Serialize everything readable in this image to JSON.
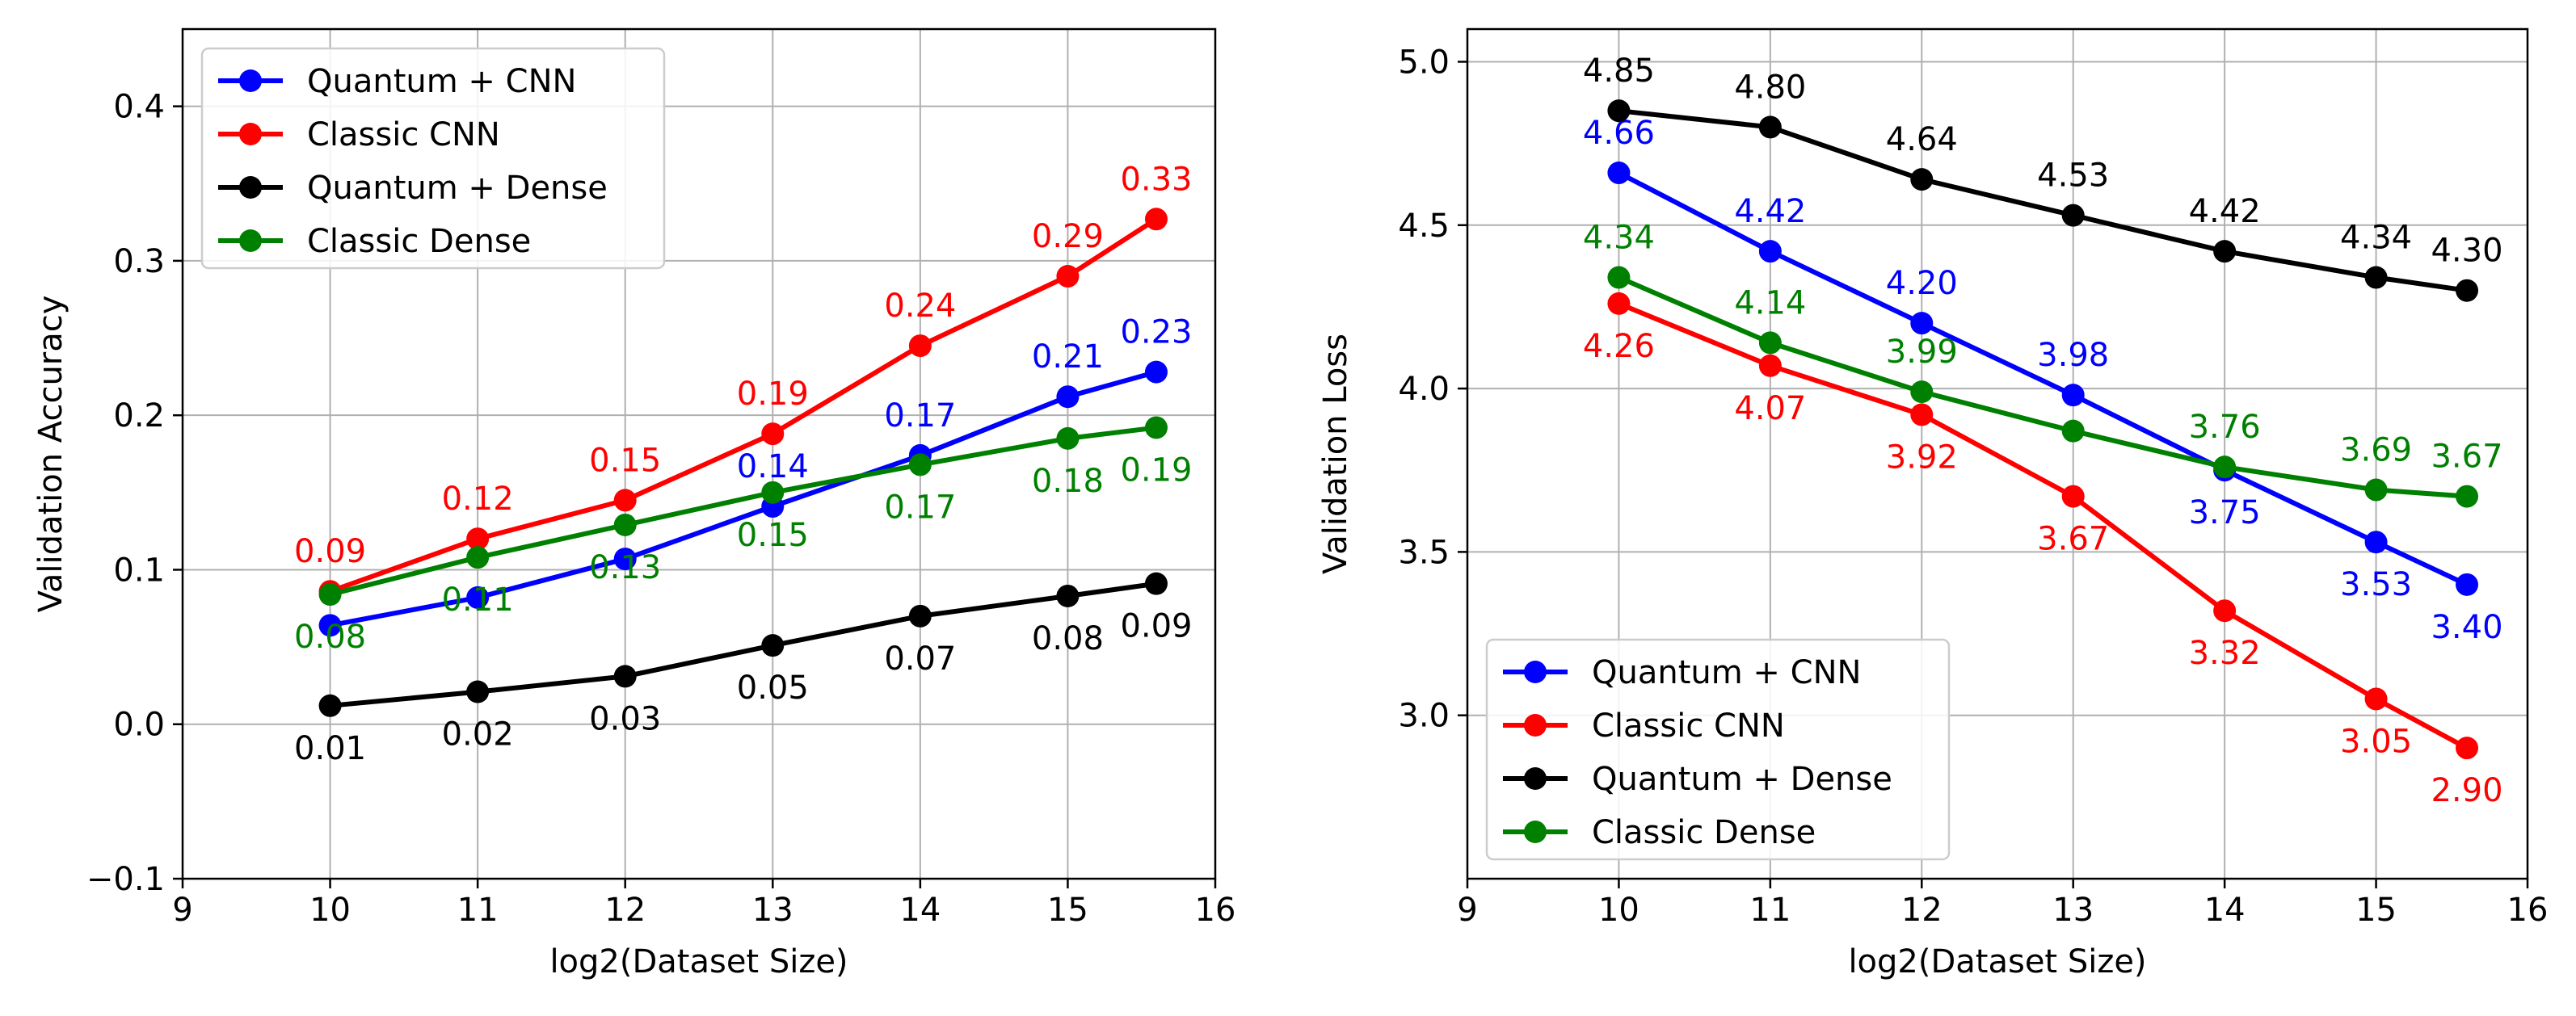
{
  "colors": {
    "quantum_cnn": "#0000ff",
    "classic_cnn": "#ff0000",
    "quantum_dense": "#000000",
    "classic_dense": "#008000",
    "grid": "#b0b0b0",
    "axes": "#000000"
  },
  "chart_data": [
    {
      "type": "line",
      "title": "",
      "xlabel": "log2(Dataset Size)",
      "ylabel": "Validation Accuracy",
      "xlim": [
        9,
        16
      ],
      "ylim": [
        -0.1,
        0.45
      ],
      "xticks": [
        9,
        10,
        11,
        12,
        13,
        14,
        15,
        16
      ],
      "xtick_labels": [
        "9",
        "10",
        "11",
        "12",
        "13",
        "14",
        "15",
        "16"
      ],
      "yticks": [
        -0.1,
        0.0,
        0.1,
        0.2,
        0.3,
        0.4
      ],
      "ytick_labels": [
        "−0.1",
        "0.0",
        "0.1",
        "0.2",
        "0.3",
        "0.4"
      ],
      "grid": true,
      "legend_position": "top-left",
      "x": [
        10,
        11,
        12,
        13,
        14,
        15,
        15.6
      ],
      "series": [
        {
          "name": "Quantum + CNN",
          "color_key": "quantum_cnn",
          "values": [
            0.064,
            0.082,
            0.107,
            0.141,
            0.174,
            0.212,
            0.228
          ],
          "labels": [
            "",
            "",
            "",
            "0.14",
            "0.17",
            "0.21",
            "0.23"
          ],
          "label_pos": [
            "above",
            "above",
            "above",
            "above",
            "above",
            "above",
            "above"
          ]
        },
        {
          "name": "Classic CNN",
          "color_key": "classic_cnn",
          "values": [
            0.086,
            0.12,
            0.145,
            0.188,
            0.245,
            0.29,
            0.327
          ],
          "labels": [
            "0.09",
            "0.12",
            "0.15",
            "0.19",
            "0.24",
            "0.29",
            "0.33"
          ],
          "label_pos": [
            "above",
            "above",
            "above",
            "above",
            "above",
            "above",
            "above"
          ]
        },
        {
          "name": "Quantum + Dense",
          "color_key": "quantum_dense",
          "values": [
            0.012,
            0.021,
            0.031,
            0.051,
            0.07,
            0.083,
            0.091
          ],
          "labels": [
            "0.01",
            "0.02",
            "0.03",
            "0.05",
            "0.07",
            "0.08",
            "0.09"
          ],
          "label_pos": [
            "below",
            "below",
            "below",
            "below",
            "below",
            "below",
            "below"
          ]
        },
        {
          "name": "Classic Dense",
          "color_key": "classic_dense",
          "values": [
            0.084,
            0.108,
            0.129,
            0.15,
            0.168,
            0.185,
            0.192
          ],
          "labels": [
            "0.08",
            "0.11",
            "0.13",
            "0.15",
            "0.17",
            "0.18",
            "0.19"
          ],
          "label_pos": [
            "below",
            "below",
            "below",
            "below",
            "below",
            "below",
            "below"
          ]
        }
      ]
    },
    {
      "type": "line",
      "title": "",
      "xlabel": "log2(Dataset Size)",
      "ylabel": "Validation Loss",
      "xlim": [
        9,
        16
      ],
      "ylim": [
        2.5,
        5.1
      ],
      "xticks": [
        9,
        10,
        11,
        12,
        13,
        14,
        15,
        16
      ],
      "xtick_labels": [
        "9",
        "10",
        "11",
        "12",
        "13",
        "14",
        "15",
        "16"
      ],
      "yticks": [
        3.0,
        3.5,
        4.0,
        4.5,
        5.0
      ],
      "ytick_labels": [
        "3.0",
        "3.5",
        "4.0",
        "4.5",
        "5.0"
      ],
      "grid": true,
      "legend_position": "bottom-left",
      "x": [
        10,
        11,
        12,
        13,
        14,
        15,
        15.6
      ],
      "series": [
        {
          "name": "Quantum + CNN",
          "color_key": "quantum_cnn",
          "values": [
            4.66,
            4.42,
            4.2,
            3.98,
            3.75,
            3.53,
            3.4
          ],
          "labels": [
            "4.66",
            "4.42",
            "4.20",
            "3.98",
            "3.75",
            "3.53",
            "3.40"
          ],
          "label_pos": [
            "above",
            "above",
            "above",
            "above",
            "below",
            "below",
            "below"
          ]
        },
        {
          "name": "Classic CNN",
          "color_key": "classic_cnn",
          "values": [
            4.26,
            4.07,
            3.92,
            3.67,
            3.32,
            3.05,
            2.9
          ],
          "labels": [
            "4.26",
            "4.07",
            "3.92",
            "3.67",
            "3.32",
            "3.05",
            "2.90"
          ],
          "label_pos": [
            "below",
            "below",
            "below",
            "below",
            "below",
            "below",
            "below"
          ]
        },
        {
          "name": "Quantum + Dense",
          "color_key": "quantum_dense",
          "values": [
            4.85,
            4.8,
            4.64,
            4.53,
            4.42,
            4.34,
            4.3
          ],
          "labels": [
            "4.85",
            "4.80",
            "4.64",
            "4.53",
            "4.42",
            "4.34",
            "4.30"
          ],
          "label_pos": [
            "above",
            "above",
            "above",
            "above",
            "above",
            "above",
            "above"
          ]
        },
        {
          "name": "Classic Dense",
          "color_key": "classic_dense",
          "values": [
            4.34,
            4.14,
            3.99,
            3.87,
            3.76,
            3.69,
            3.67
          ],
          "labels": [
            "4.34",
            "4.14",
            "3.99",
            "",
            "3.76",
            "3.69",
            "3.67"
          ],
          "label_pos": [
            "above",
            "above",
            "above",
            "above",
            "above",
            "above",
            "above"
          ]
        }
      ]
    }
  ]
}
